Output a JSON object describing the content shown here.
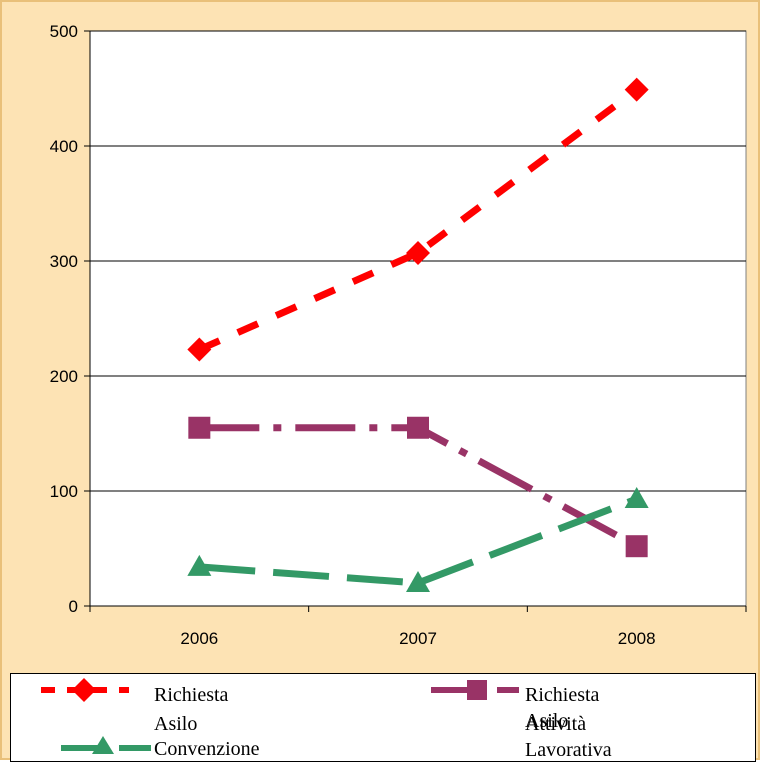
{
  "chart_data": {
    "type": "line",
    "categories": [
      "2006",
      "2007",
      "2008"
    ],
    "ylim": [
      0,
      500
    ],
    "yticks": [
      0,
      100,
      200,
      300,
      400,
      500
    ],
    "grid": true,
    "legend_position": "bottom",
    "series": [
      {
        "name": "Richiesta Asilo",
        "values": [
          223,
          307,
          449
        ],
        "color": "#ff0000",
        "marker": "diamond",
        "line_style": "dashed"
      },
      {
        "name": "Richiesta Asilo Attività Lavorativa",
        "values": [
          155,
          155,
          52
        ],
        "color": "#993366",
        "marker": "square",
        "line_style": "dash-dot"
      },
      {
        "name": "Convenzione",
        "values": [
          34,
          20,
          93
        ],
        "color": "#339966",
        "marker": "triangle",
        "line_style": "long-dash"
      }
    ]
  },
  "legend": {
    "items": [
      {
        "label_line1": "Richiesta",
        "label_line2": "Asilo"
      },
      {
        "label_line1": "Richiesta Asilo",
        "label_line2": "Attività Lavorativa"
      },
      {
        "label_line1": "Convenzione",
        "label_line2": ""
      }
    ]
  }
}
